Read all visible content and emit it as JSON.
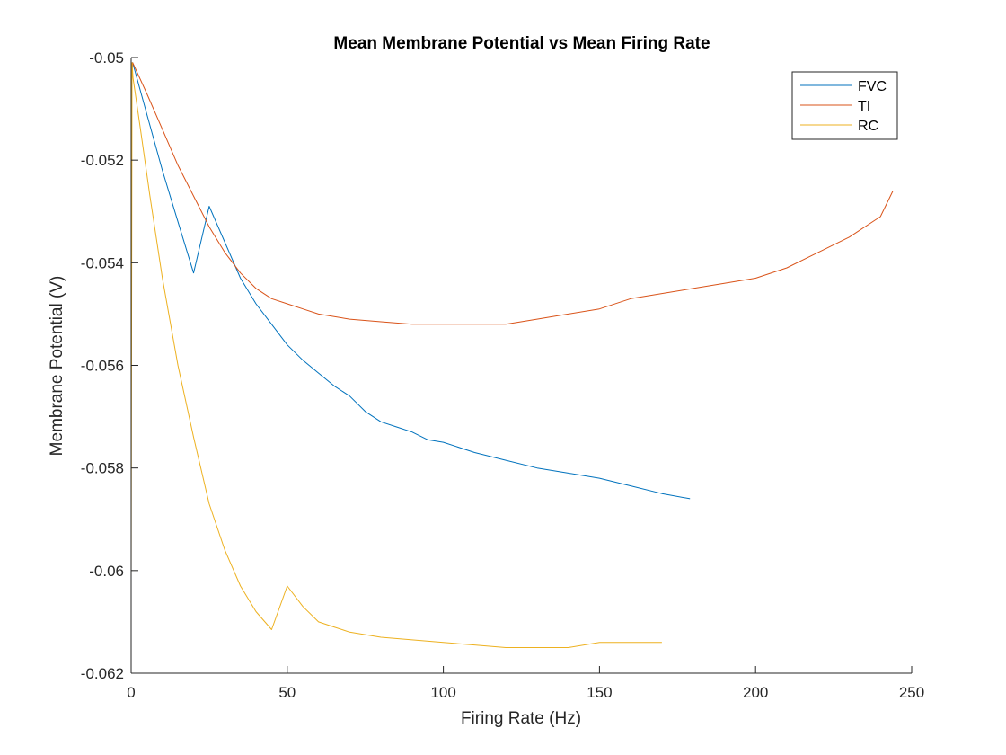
{
  "chart_data": {
    "type": "line",
    "title": "Mean Membrane Potential vs Mean Firing Rate",
    "xlabel": "Firing Rate (Hz)",
    "ylabel": "Membrane Potential (V)",
    "xlim": [
      0,
      250
    ],
    "ylim": [
      -0.062,
      -0.05
    ],
    "xticks": [
      0,
      50,
      100,
      150,
      200,
      250
    ],
    "xtick_labels": [
      "0",
      "50",
      "100",
      "150",
      "200",
      "250"
    ],
    "yticks": [
      -0.062,
      -0.06,
      -0.058,
      -0.056,
      -0.054,
      -0.052,
      -0.05
    ],
    "ytick_labels": [
      "-0.062",
      "-0.06",
      "-0.058",
      "-0.056",
      "-0.054",
      "-0.052",
      "-0.05"
    ],
    "grid": false,
    "legend_position": "top-right",
    "series": [
      {
        "name": "FVC",
        "color": "#0072BD",
        "x": [
          0,
          0.5,
          5,
          10,
          15,
          20,
          25,
          30,
          35,
          40,
          45,
          50,
          55,
          60,
          65,
          70,
          75,
          80,
          85,
          90,
          95,
          100,
          110,
          120,
          130,
          140,
          150,
          160,
          170,
          179
        ],
        "y": [
          -0.0505,
          -0.0501,
          -0.0511,
          -0.0522,
          -0.0532,
          -0.0542,
          -0.0529,
          -0.0536,
          -0.0543,
          -0.0548,
          -0.0552,
          -0.0556,
          -0.0559,
          -0.05615,
          -0.0564,
          -0.0566,
          -0.0569,
          -0.0571,
          -0.0572,
          -0.0573,
          -0.05745,
          -0.0575,
          -0.0577,
          -0.05785,
          -0.058,
          -0.0581,
          -0.0582,
          -0.05835,
          -0.0585,
          -0.0586
        ]
      },
      {
        "name": "TI",
        "color": "#D95319",
        "x": [
          0,
          0.5,
          5,
          10,
          15,
          20,
          25,
          30,
          35,
          40,
          45,
          50,
          55,
          60,
          70,
          80,
          90,
          100,
          110,
          120,
          130,
          140,
          150,
          160,
          170,
          180,
          190,
          200,
          210,
          220,
          230,
          240,
          244
        ],
        "y": [
          -0.0505,
          -0.0501,
          -0.0507,
          -0.0514,
          -0.0521,
          -0.0527,
          -0.0533,
          -0.0538,
          -0.0542,
          -0.0545,
          -0.0547,
          -0.0548,
          -0.0549,
          -0.055,
          -0.0551,
          -0.05515,
          -0.0552,
          -0.0552,
          -0.0552,
          -0.0552,
          -0.0551,
          -0.055,
          -0.0549,
          -0.0547,
          -0.0546,
          -0.0545,
          -0.0544,
          -0.0543,
          -0.0541,
          -0.0538,
          -0.0535,
          -0.0531,
          -0.0526
        ]
      },
      {
        "name": "RC",
        "color": "#EDB120",
        "x": [
          0,
          0.3,
          0.6,
          3,
          6,
          10,
          15,
          20,
          25,
          30,
          35,
          40,
          45,
          50,
          55,
          60,
          65,
          70,
          80,
          90,
          100,
          110,
          120,
          130,
          140,
          150,
          160,
          170
        ],
        "y": [
          -0.0602,
          -0.0501,
          -0.0504,
          -0.0514,
          -0.0527,
          -0.0543,
          -0.056,
          -0.0574,
          -0.0587,
          -0.0596,
          -0.0603,
          -0.0608,
          -0.06115,
          -0.0603,
          -0.0607,
          -0.061,
          -0.0611,
          -0.0612,
          -0.0613,
          -0.06135,
          -0.0614,
          -0.06145,
          -0.0615,
          -0.0615,
          -0.0615,
          -0.0614,
          -0.0614,
          -0.0614
        ]
      }
    ]
  }
}
